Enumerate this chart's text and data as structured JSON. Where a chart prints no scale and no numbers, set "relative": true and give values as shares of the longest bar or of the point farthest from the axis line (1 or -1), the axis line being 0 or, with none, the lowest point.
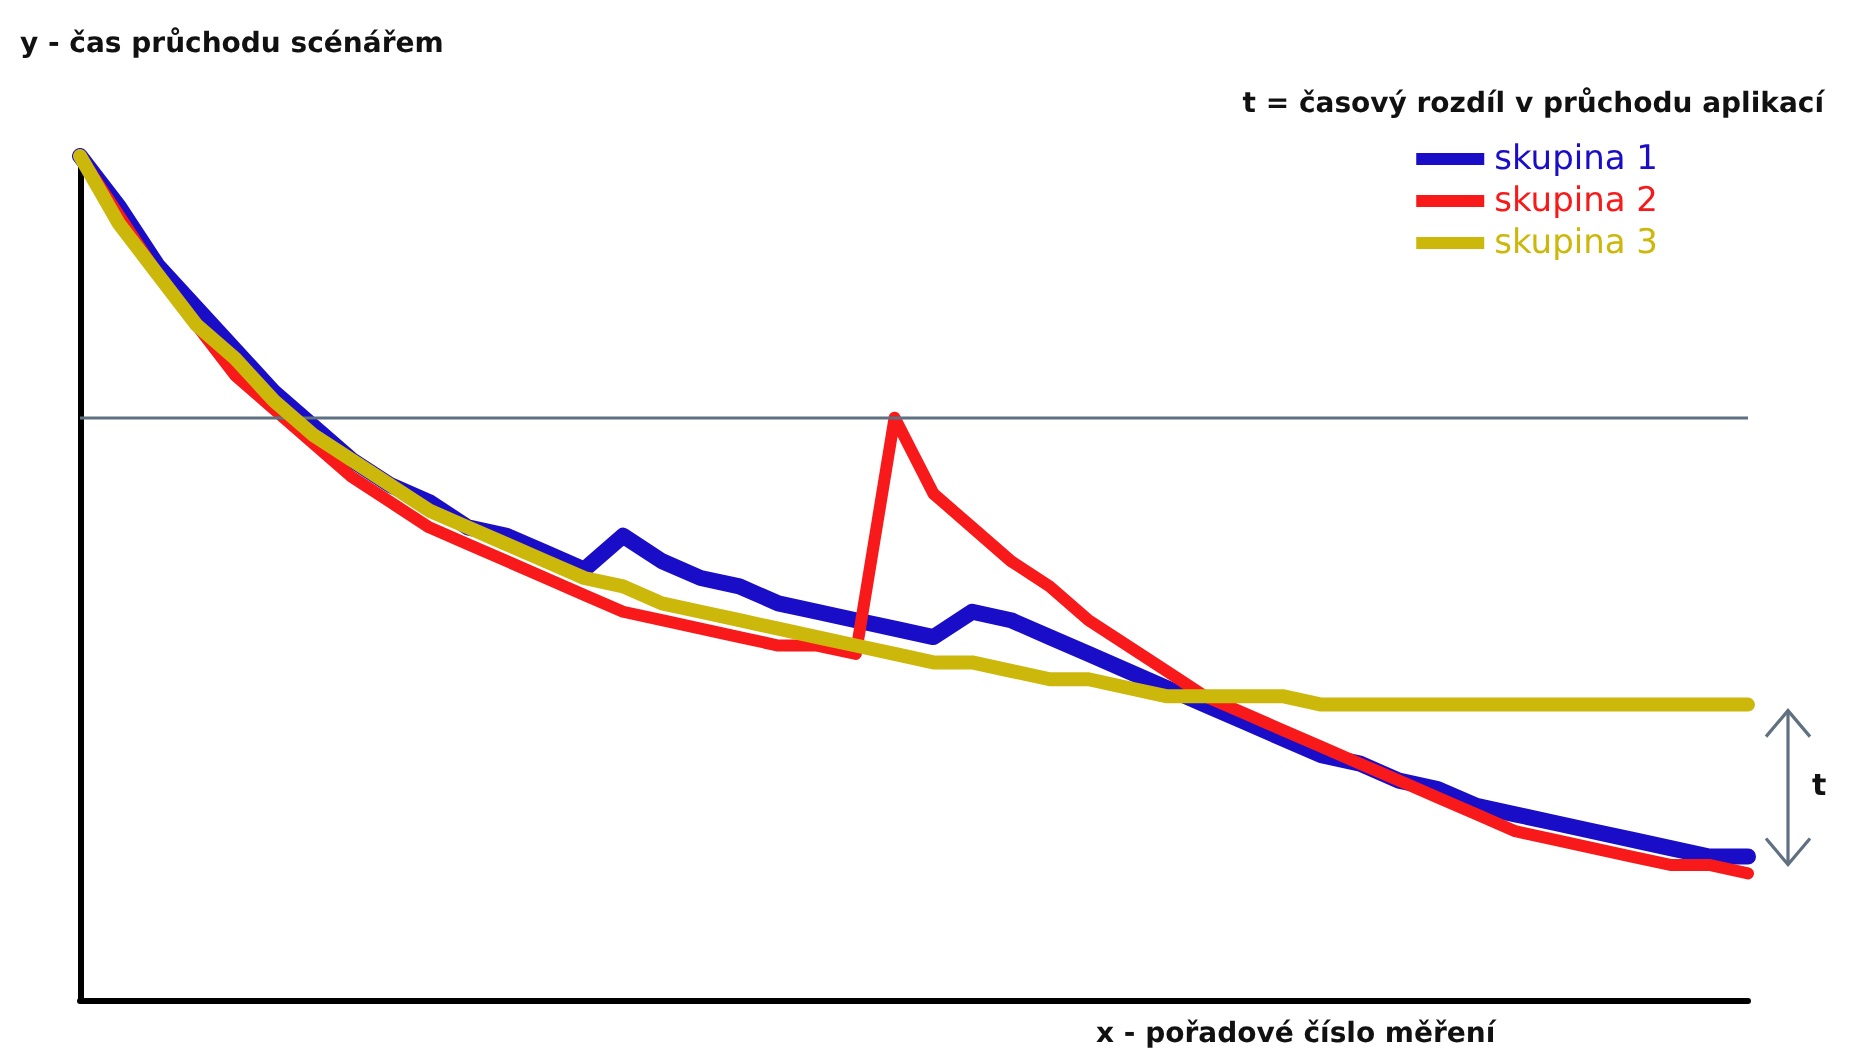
{
  "chart_data": {
    "type": "line",
    "relative": true,
    "xlabel": "x - pořadové číslo měření",
    "ylabel": "y - čas průchodu scénářem",
    "legend_title": "t = časový rozdíl v průchodu aplikací",
    "annotations": [
      "t"
    ],
    "categories": [
      null,
      null,
      null,
      null,
      null,
      null,
      null,
      null,
      null,
      null,
      null,
      null,
      null,
      null,
      null,
      null,
      null,
      null,
      null,
      null,
      null,
      null,
      null,
      null,
      null,
      null,
      null,
      null,
      null,
      null,
      null,
      null,
      null,
      null,
      null,
      null,
      null,
      null,
      null,
      null,
      null,
      null,
      null,
      null
    ],
    "grid": false,
    "legend": "top right",
    "marker": "none",
    "line_style": "solid",
    "ref_lines": [
      {
        "axis": "y",
        "value": 0.69,
        "color": "#5f7080"
      }
    ],
    "series": [
      {
        "name": "skupina 1",
        "color": "#1a0dc8",
        "values": [
          1.0,
          0.94,
          0.87,
          0.82,
          0.77,
          0.72,
          0.68,
          0.64,
          0.61,
          0.59,
          0.56,
          0.55,
          0.53,
          0.51,
          0.55,
          0.52,
          0.5,
          0.49,
          0.47,
          0.46,
          0.45,
          0.44,
          0.43,
          0.46,
          0.45,
          0.43,
          0.41,
          0.39,
          0.37,
          0.35,
          0.33,
          0.31,
          0.29,
          0.28,
          0.26,
          0.25,
          0.23,
          0.22,
          0.21,
          0.2,
          0.19,
          0.18,
          0.17,
          0.17
        ]
      },
      {
        "name": "skupina 2",
        "color": "#f81a1a",
        "values": [
          1.0,
          0.93,
          0.86,
          0.8,
          0.74,
          0.7,
          0.66,
          0.62,
          0.59,
          0.56,
          0.54,
          0.52,
          0.5,
          0.48,
          0.46,
          0.45,
          0.44,
          0.43,
          0.42,
          0.42,
          0.41,
          0.69,
          0.6,
          0.56,
          0.52,
          0.49,
          0.45,
          0.42,
          0.39,
          0.36,
          0.34,
          0.32,
          0.3,
          0.28,
          0.26,
          0.24,
          0.22,
          0.2,
          0.19,
          0.18,
          0.17,
          0.16,
          0.16,
          0.15
        ]
      },
      {
        "name": "skupina 3",
        "color": "#ccb80a",
        "values": [
          1.0,
          0.92,
          0.86,
          0.8,
          0.76,
          0.71,
          0.67,
          0.64,
          0.61,
          0.58,
          0.56,
          0.54,
          0.52,
          0.5,
          0.49,
          0.47,
          0.46,
          0.45,
          0.44,
          0.43,
          0.42,
          0.41,
          0.4,
          0.4,
          0.39,
          0.38,
          0.38,
          0.37,
          0.36,
          0.36,
          0.36,
          0.36,
          0.35,
          0.35,
          0.35,
          0.35,
          0.35,
          0.35,
          0.35,
          0.35,
          0.35,
          0.35,
          0.35,
          0.35
        ]
      }
    ]
  }
}
